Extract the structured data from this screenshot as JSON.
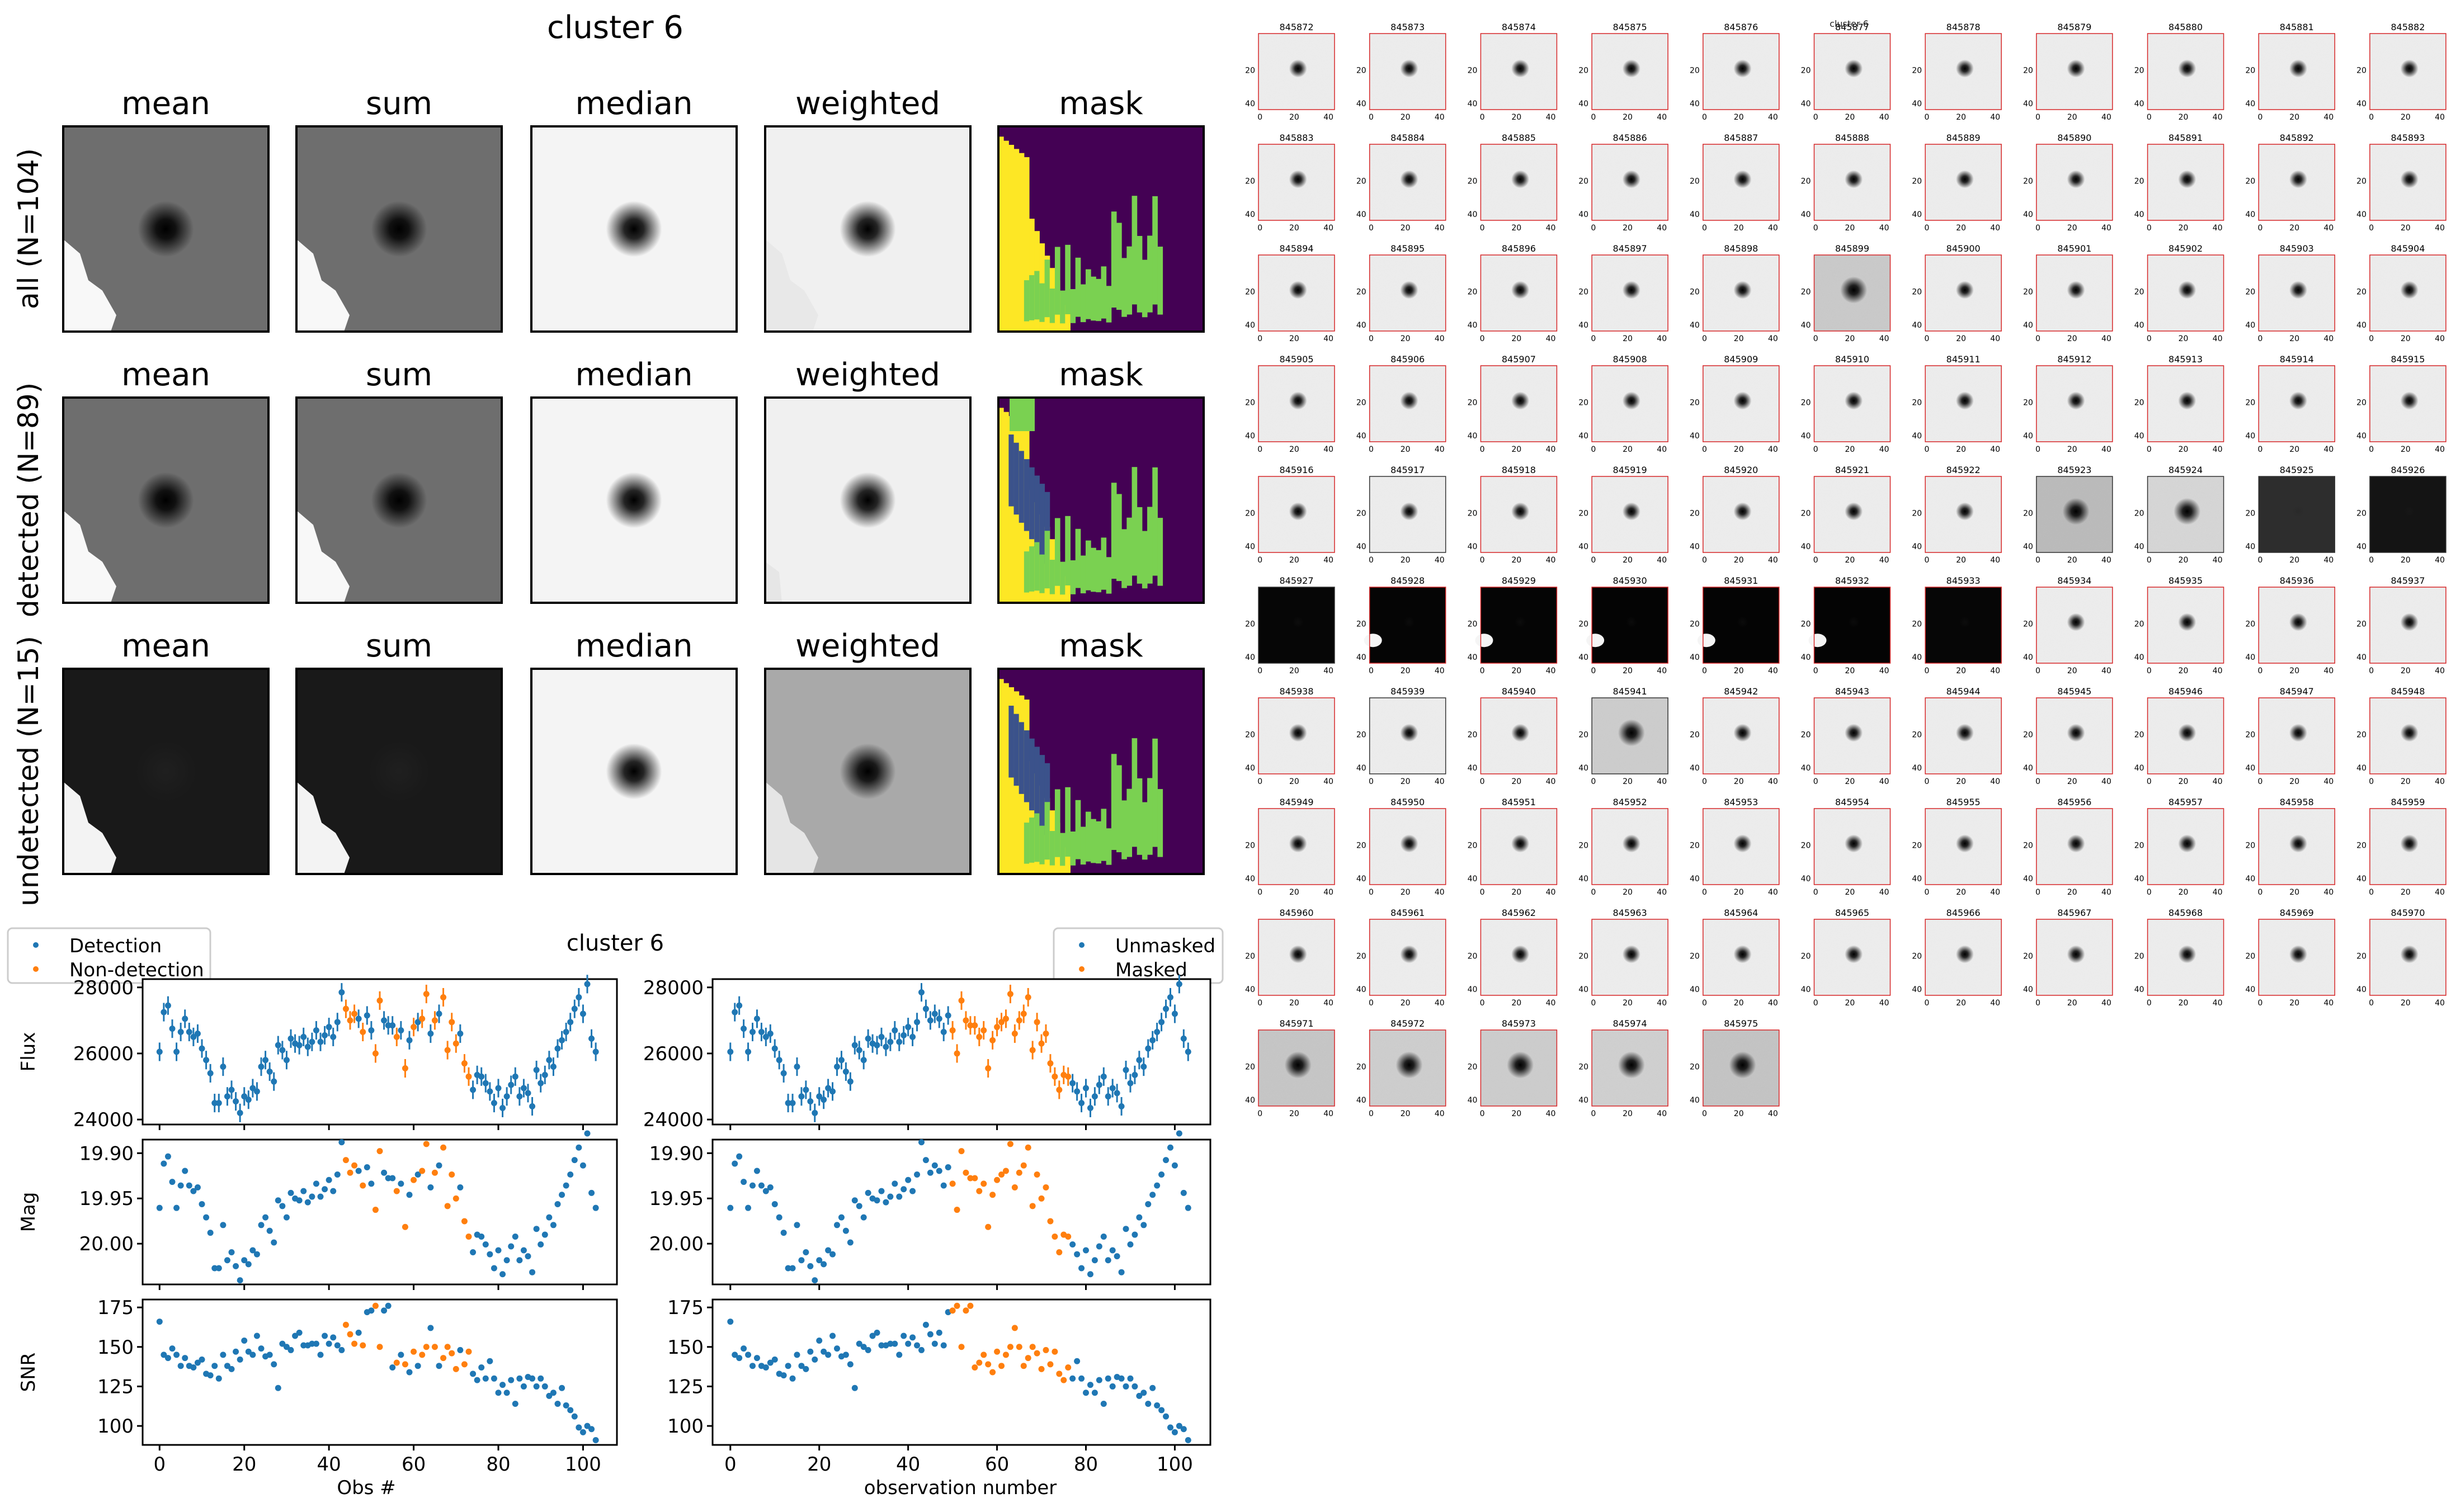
{
  "figure": {
    "cluster_title": "cluster 6",
    "plot_title": "cluster 6",
    "column_titles": [
      "mean",
      "sum",
      "median",
      "weighted",
      "mask"
    ],
    "row_labels": [
      "all (N=104)",
      "detected (N=89)",
      "undetected (N=15)"
    ],
    "cluster_overlay_text": "cluster 6",
    "stamp_ticks_x": [
      "0",
      "20",
      "40"
    ],
    "stamp_ticks_y": [
      "20",
      "40"
    ],
    "panel_axes": {
      "left": {
        "xlabel": "Obs #",
        "ylabels": [
          "Flux",
          "Mag",
          "SNR"
        ]
      },
      "right": {
        "xlabel": "observation number"
      }
    },
    "legends": {
      "left": [
        "Detection",
        "Non-detection"
      ],
      "right": [
        "Unmasked",
        "Masked"
      ]
    },
    "colors": {
      "blue": "#1f77b4",
      "orange": "#ff7f0e",
      "frame_red": "#d62728",
      "mask_yellow": "#fde725",
      "mask_green": "#7ad151",
      "mask_navy": "#3b528b",
      "mask_purple": "#440154"
    }
  },
  "stamps": {
    "first_id": 845872,
    "count": 104,
    "labels": [
      "845872",
      "845873",
      "845874",
      "845875",
      "845876",
      "845877",
      "845878",
      "845879",
      "845880",
      "845881",
      "845882",
      "845883",
      "845884",
      "845885",
      "845886",
      "845887",
      "845888",
      "845889",
      "845890",
      "845891",
      "845892",
      "845893",
      "845894",
      "845895",
      "845896",
      "845897",
      "845898",
      "845899",
      "845900",
      "845901",
      "845902",
      "845903",
      "845904",
      "845905",
      "845906",
      "845907",
      "845908",
      "845909",
      "845910",
      "845911",
      "845912",
      "845913",
      "845914",
      "845915",
      "845916",
      "845917",
      "845918",
      "845919",
      "845920",
      "845921",
      "845922",
      "845923",
      "845924",
      "845925",
      "845926",
      "845927",
      "845928",
      "845929",
      "845930",
      "845931",
      "845932",
      "845933",
      "845934",
      "845935",
      "845936",
      "845937",
      "845938",
      "845939",
      "845940",
      "845941",
      "845942",
      "845943",
      "845944",
      "845945",
      "845946",
      "845947",
      "845948",
      "845949",
      "845950",
      "845951",
      "845952",
      "845953",
      "845954",
      "845955",
      "845956",
      "845957",
      "845958",
      "845959",
      "845960",
      "845961",
      "845962",
      "845963",
      "845964",
      "845965",
      "845966",
      "845967",
      "845968",
      "845969",
      "845970",
      "845971",
      "845972",
      "845973",
      "845974",
      "845975"
    ]
  },
  "chart_data": [
    {
      "type": "scatter",
      "title": "cluster 6",
      "xlabel": "",
      "ylabel": "Flux",
      "xlim": [
        -4,
        108
      ],
      "ylim": [
        23850,
        28250
      ],
      "yticks": [
        24000,
        26000,
        28000
      ],
      "xticks": [
        0,
        20,
        40,
        60,
        80,
        100
      ],
      "values": [
        26050,
        27250,
        27450,
        26750,
        26050,
        26650,
        27050,
        26650,
        26500,
        26600,
        26150,
        25800,
        25400,
        24500,
        24500,
        25600,
        24700,
        24900,
        24550,
        24200,
        24700,
        24600,
        24950,
        24850,
        25600,
        25800,
        25450,
        25150,
        26250,
        26100,
        25800,
        26450,
        26300,
        26250,
        26500,
        26200,
        26350,
        26700,
        26350,
        26550,
        26800,
        26500,
        26950,
        27850,
        27350,
        27000,
        27200,
        27050,
        26650,
        27150,
        26700,
        26000,
        27600,
        27000,
        26850,
        26850,
        26500,
        26700,
        25550,
        26400,
        26800,
        26950,
        27050,
        27800,
        26600,
        27000,
        27200,
        27700,
        26100,
        26950,
        26300,
        26600,
        25700,
        25300,
        24900,
        25350,
        25300,
        25100,
        24850,
        24500,
        24950,
        24350,
        24700,
        25050,
        25300,
        24700,
        24950,
        24800,
        24400,
        25500,
        25100,
        25350,
        25800,
        25600,
        26150,
        26400,
        26650,
        26950,
        27350,
        27700,
        27200,
        28100,
        26450,
        26050
      ],
      "flux_errors": 280
    },
    {
      "type": "scatter",
      "ylabel": "Mag",
      "ylim": [
        20.045,
        19.885
      ],
      "yticks": [
        "19.90",
        "19.95",
        "20.00"
      ],
      "inverted": true
    },
    {
      "type": "scatter",
      "xlabel": "Obs #",
      "ylabel": "SNR",
      "ylim": [
        88,
        180
      ],
      "yticks": [
        100,
        125,
        150,
        175
      ],
      "xticks": [
        0,
        20,
        40,
        60,
        80,
        100
      ],
      "values": [
        166,
        145,
        143,
        149,
        145,
        138,
        143,
        138,
        137,
        140,
        142,
        133,
        132,
        138,
        130,
        145,
        138,
        136,
        147,
        142,
        154,
        147,
        145,
        157,
        149,
        144,
        145,
        139,
        124,
        152,
        150,
        148,
        157,
        159,
        151,
        151,
        152,
        152,
        145,
        157,
        152,
        156,
        151,
        148,
        164,
        158,
        152,
        159,
        151,
        172,
        173,
        176,
        150,
        173,
        176,
        137,
        140,
        145,
        139,
        134,
        147,
        138,
        145,
        150,
        162,
        150,
        138,
        143,
        150,
        146,
        136,
        148,
        139,
        147,
        133,
        129,
        137,
        130,
        141,
        130,
        121,
        126,
        121,
        129,
        114,
        130,
        125,
        131,
        130,
        125,
        130,
        125,
        119,
        121,
        114,
        124,
        113,
        110,
        106,
        99,
        96,
        100,
        98,
        91
      ]
    }
  ]
}
